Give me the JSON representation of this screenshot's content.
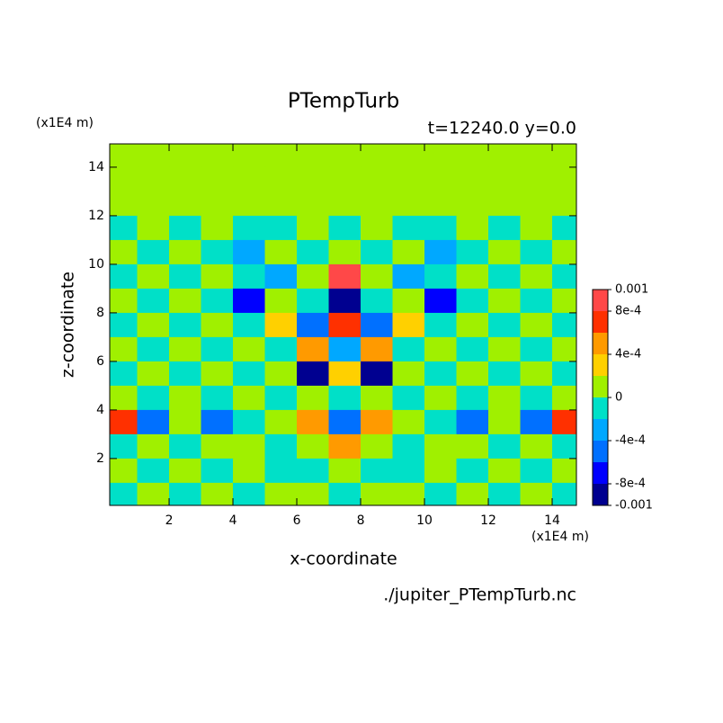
{
  "chart_data": {
    "type": "heatmap",
    "title": "PTempTurb",
    "subtitle": "t=12240.0 y=0.0",
    "x_label": "x-coordinate",
    "y_label": "z-coordinate",
    "x_unit": "(x1E4 m)",
    "y_unit": "(x1E4 m)",
    "source": "./jupiter_PTempTurb.nc",
    "x": [
      0.5,
      1.5,
      2.5,
      3.5,
      4.5,
      5.5,
      6.5,
      7.5,
      8.5,
      9.5,
      10.5,
      11.5,
      12.5,
      13.5,
      14.5
    ],
    "y": [
      14.5,
      13.5,
      12.5,
      11.5,
      10.5,
      9.5,
      8.5,
      7.5,
      6.5,
      5.5,
      4.5,
      3.5,
      2.5,
      1.5,
      0.5
    ],
    "values": [
      [
        0.0001,
        0.0001,
        0.0001,
        0.0001,
        0.0001,
        0.0001,
        0.0001,
        0.0001,
        0.0001,
        0.0001,
        0.0001,
        0.0001,
        0.0001,
        0.0001,
        0.0001
      ],
      [
        0.0001,
        0.0001,
        0.0001,
        0.0001,
        0.0001,
        0.0001,
        0.0001,
        0.0001,
        0.0001,
        0.0001,
        0.0001,
        0.0001,
        0.0001,
        0.0001,
        0.0001
      ],
      [
        0.0001,
        0.0001,
        0.0001,
        0.0001,
        0.0001,
        0.0001,
        0.0001,
        0.0001,
        0.0001,
        0.0001,
        0.0001,
        0.0001,
        0.0001,
        0.0001,
        0.0001
      ],
      [
        -0.0001,
        0.0001,
        -0.0001,
        0.0001,
        -0.0001,
        -0.0001,
        0.0001,
        -0.0001,
        0.0001,
        -0.0001,
        -0.0001,
        0.0001,
        -0.0001,
        0.0001,
        -0.0001
      ],
      [
        0.0001,
        -0.0001,
        0.0001,
        -0.0001,
        -0.0003,
        0.0001,
        -0.0001,
        0.0001,
        -0.0001,
        0.0001,
        -0.0003,
        -0.0001,
        0.0001,
        -0.0001,
        0.0001
      ],
      [
        -0.0001,
        0.0001,
        -0.0001,
        0.0001,
        -0.0001,
        -0.0003,
        0.0001,
        0.0009,
        0.0001,
        -0.0003,
        -0.0001,
        0.0001,
        -0.0001,
        0.0001,
        -0.0001
      ],
      [
        0.0001,
        -0.0001,
        0.0001,
        -0.0001,
        -0.0007,
        0.0001,
        -0.0001,
        -0.0009,
        -0.0001,
        0.0001,
        -0.0007,
        -0.0001,
        0.0001,
        -0.0001,
        0.0001
      ],
      [
        -0.0001,
        0.0001,
        -0.0001,
        0.0001,
        -0.0001,
        0.0003,
        -0.0005,
        0.0007,
        -0.0005,
        0.0003,
        -0.0001,
        0.0001,
        -0.0001,
        0.0001,
        -0.0001
      ],
      [
        0.0001,
        -0.0001,
        0.0001,
        -0.0001,
        0.0001,
        -0.0001,
        0.0005,
        -0.0003,
        0.0005,
        -0.0001,
        0.0001,
        -0.0001,
        0.0001,
        -0.0001,
        0.0001
      ],
      [
        -0.0001,
        0.0001,
        -0.0001,
        0.0001,
        -0.0001,
        0.0001,
        -0.0009,
        0.0003,
        -0.0009,
        0.0001,
        -0.0001,
        0.0001,
        -0.0001,
        0.0001,
        -0.0001
      ],
      [
        0.0001,
        -0.0001,
        0.0001,
        -0.0001,
        0.0001,
        -0.0001,
        0.0001,
        -0.0001,
        0.0001,
        -0.0001,
        0.0001,
        -0.0001,
        0.0001,
        -0.0001,
        0.0001
      ],
      [
        0.0007,
        -0.0005,
        0.0001,
        -0.0005,
        -0.0001,
        0.0001,
        0.0005,
        -0.0005,
        0.0005,
        0.0001,
        -0.0001,
        -0.0005,
        0.0001,
        -0.0005,
        0.0007
      ],
      [
        -0.0001,
        0.0001,
        -0.0001,
        0.0001,
        0.0001,
        -0.0001,
        0.0001,
        0.0005,
        0.0001,
        -0.0001,
        0.0001,
        0.0001,
        -0.0001,
        0.0001,
        -0.0001
      ],
      [
        0.0001,
        -0.0001,
        0.0001,
        -0.0001,
        0.0001,
        -0.0001,
        -0.0001,
        0.0001,
        -0.0001,
        -0.0001,
        0.0001,
        -0.0001,
        0.0001,
        -0.0001,
        0.0001
      ],
      [
        -0.0001,
        0.0001,
        -0.0001,
        0.0001,
        -0.0001,
        0.0001,
        0.0001,
        -0.0001,
        0.0001,
        0.0001,
        -0.0001,
        0.0001,
        -0.0001,
        0.0001,
        -0.0001
      ]
    ],
    "xlim": [
      0.14,
      14.76
    ],
    "ylim": [
      0.07,
      14.96
    ],
    "xticks": [
      2,
      4,
      6,
      8,
      10,
      12,
      14
    ],
    "yticks": [
      2,
      4,
      6,
      8,
      10,
      12,
      14
    ],
    "levels": [
      -0.001,
      -0.0008,
      -0.0006,
      -0.0004,
      -0.0002,
      0,
      0.0002,
      0.0004,
      0.0006,
      0.0008,
      0.001
    ],
    "colors": [
      "#000090",
      "#0000ff",
      "#0070ff",
      "#00a8ff",
      "#00e0c8",
      "#a0f000",
      "#ffd000",
      "#ff9a00",
      "#ff3000",
      "#ff4848"
    ],
    "colorbar_ticks": [
      0.001,
      {
        "value": 0.0008,
        "label": "8e-4"
      },
      {
        "value": 0.0004,
        "label": "4e-4"
      },
      0,
      {
        "value": -0.0004,
        "label": "-4e-4"
      },
      {
        "value": -0.0008,
        "label": "-8e-4"
      },
      -0.001
    ]
  }
}
